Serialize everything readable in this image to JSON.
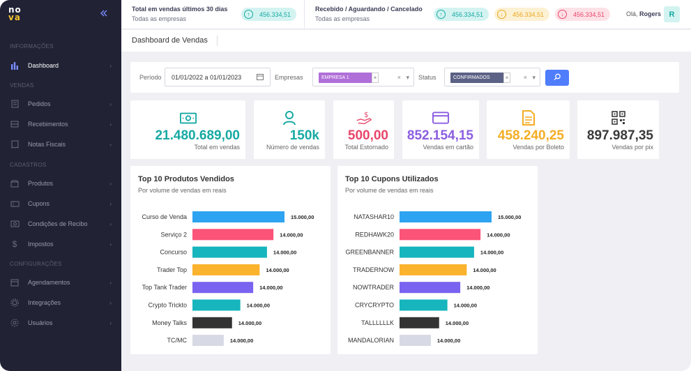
{
  "app": {
    "logo_top": "no",
    "logo_bottom": "va",
    "collapse_icon": "chevrons-left-icon"
  },
  "sidebar": {
    "sections": [
      {
        "label": "INFORMAÇÕES"
      },
      {
        "label": "VENDAS"
      },
      {
        "label": "CADASTROS"
      },
      {
        "label": "CONFIGURAÇÕES"
      }
    ],
    "items": [
      {
        "label": "Dashboard",
        "icon": "bar-chart-icon",
        "active": true
      },
      {
        "label": "Pedidos",
        "icon": "document-icon"
      },
      {
        "label": "Recebimentos",
        "icon": "inbox-icon"
      },
      {
        "label": "Notas Fiscais",
        "icon": "receipt-icon"
      },
      {
        "label": "Produtos",
        "icon": "box-icon"
      },
      {
        "label": "Cupons",
        "icon": "ticket-icon"
      },
      {
        "label": "Condições de Recibo",
        "icon": "cash-icon"
      },
      {
        "label": "Impostos",
        "icon": "dollar-icon"
      },
      {
        "label": "Agendamentos",
        "icon": "calendar-icon"
      },
      {
        "label": "Integrações",
        "icon": "integration-icon"
      },
      {
        "label": "Usuários",
        "icon": "users-icon"
      }
    ]
  },
  "topbar": {
    "sales": {
      "title": "Total em vendas últimos 30 dias",
      "subtitle": "Todas as empresas",
      "value": "456.334,51"
    },
    "received": {
      "title": "Recebido / Aguardando / Cancelado",
      "subtitle": "Todas as empresas"
    },
    "pills": {
      "received": "456.334,51",
      "waiting": "456.334,51",
      "canceled": "456.334,51"
    },
    "greeting_prefix": "Olá,",
    "user_name": "Rogers",
    "avatar_initial": "R"
  },
  "page": {
    "title": "Dashboard de Vendas"
  },
  "filters": {
    "period_label": "Período",
    "period_value": "01/01/2022 a 01/01/2023",
    "companies_label": "Empresas",
    "company_tag": "EMPRESA 1",
    "status_label": "Status",
    "status_tag": "CONFIRMADOS",
    "remove_symbol": "×",
    "dropdown_symbol": "▾"
  },
  "kpis": [
    {
      "value": "21.480.689,00",
      "label": "Total em vendas",
      "color": "#17a9a3",
      "icon": "money-icon"
    },
    {
      "value": "150k",
      "label": "Número de vendas",
      "color": "#17a9a3",
      "icon": "user-icon"
    },
    {
      "value": "500,00",
      "label": "Total Estornado",
      "color": "#e8456a",
      "icon": "refund-icon"
    },
    {
      "value": "852.154,15",
      "label": "Vendas em cartão",
      "color": "#8c5ee0",
      "icon": "credit-card-icon"
    },
    {
      "value": "458.240,25",
      "label": "Vendas por Boleto",
      "color": "#f4ad24",
      "icon": "boleto-icon"
    },
    {
      "value": "897.987,35",
      "label": "Vendas por pix",
      "color": "#3a3a3a",
      "icon": "qr-code-icon"
    }
  ],
  "chart_data": [
    {
      "type": "bar",
      "orientation": "horizontal",
      "title": "Top 10 Produtos Vendidos",
      "subtitle": "Por volume de vendas em reais",
      "categories": [
        "Curso de Venda",
        "Serviço 2",
        "Concurso",
        "Trader Top",
        "Top Tank Trader",
        "Crypto Trickto",
        "Money Talks",
        "TC/MC"
      ],
      "values": [
        15000,
        14000,
        14000,
        14000,
        14000,
        14000,
        14000,
        14000
      ],
      "bar_fraction": [
        1.0,
        0.88,
        0.81,
        0.73,
        0.66,
        0.52,
        0.43,
        0.34
      ],
      "labels": [
        "15.000,00",
        "14.000,00",
        "14.000,00",
        "14.000,00",
        "14.000,00",
        "14.000,00",
        "14.000,00",
        "14.000,00"
      ],
      "colors": [
        "#2ea3f2",
        "#fb5478",
        "#17b5bd",
        "#fbb22d",
        "#7a63f0",
        "#17b5bd",
        "#333333",
        "#d7d9e4"
      ]
    },
    {
      "type": "bar",
      "orientation": "horizontal",
      "title": "Top 10 Cupons Utilizados",
      "subtitle": "Por volume de vendas em reais",
      "categories": [
        "NATASHAR10",
        "REDHAWK20",
        "GREENBANNER",
        "TRADERNOW",
        "NOWTRADER",
        "CRYCRYPTO",
        "TALLLLLLK",
        "MANDALORIAN"
      ],
      "values": [
        15000,
        14000,
        14000,
        14000,
        14000,
        14000,
        14000,
        14000
      ],
      "bar_fraction": [
        1.0,
        0.88,
        0.81,
        0.73,
        0.66,
        0.52,
        0.43,
        0.34
      ],
      "labels": [
        "15.000,00",
        "14.000,00",
        "14.000,00",
        "14.000,00",
        "14.000,00",
        "14.000,00",
        "14.000,00",
        "14.000,00"
      ],
      "colors": [
        "#2ea3f2",
        "#fb5478",
        "#17b5bd",
        "#fbb22d",
        "#7a63f0",
        "#17b5bd",
        "#333333",
        "#d7d9e4"
      ]
    }
  ]
}
